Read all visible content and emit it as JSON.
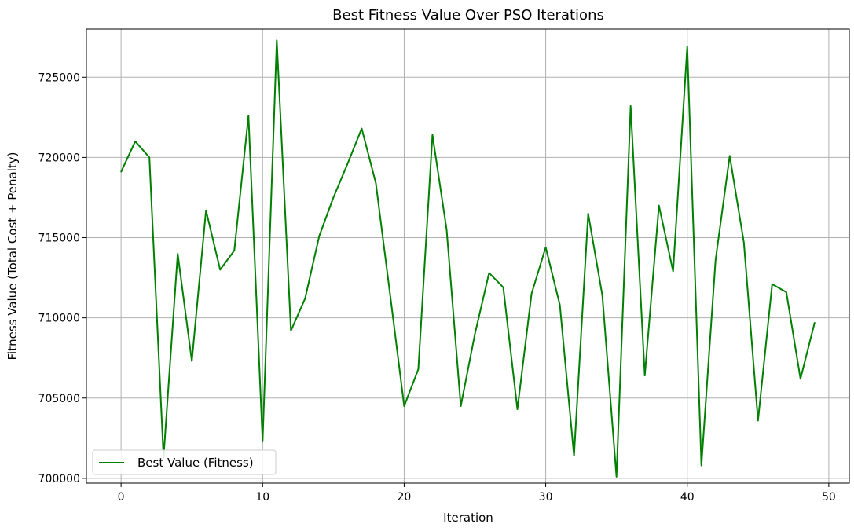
{
  "chart_data": {
    "type": "line",
    "title": "Best Fitness Value Over PSO Iterations",
    "xlabel": "Iteration",
    "ylabel": "Fitness Value (Total Cost + Penalty)",
    "xlim": [
      -2.45,
      51.45
    ],
    "ylim": [
      699700,
      728000
    ],
    "xticks": [
      0,
      10,
      20,
      30,
      40,
      50
    ],
    "xtick_labels": [
      "0",
      "10",
      "20",
      "30",
      "40",
      "50"
    ],
    "yticks": [
      700000,
      705000,
      710000,
      715000,
      720000,
      725000
    ],
    "ytick_labels": [
      "700000",
      "705000",
      "710000",
      "715000",
      "720000",
      "725000"
    ],
    "grid": true,
    "legend_position": "lower-left",
    "series": [
      {
        "name": "Best Value (Fitness)",
        "color": "#008000",
        "x": [
          0,
          1,
          2,
          3,
          4,
          5,
          6,
          7,
          8,
          9,
          10,
          11,
          12,
          13,
          14,
          15,
          16,
          17,
          18,
          19,
          20,
          21,
          22,
          23,
          24,
          25,
          26,
          27,
          28,
          29,
          30,
          31,
          32,
          33,
          34,
          35,
          36,
          37,
          38,
          39,
          40,
          41,
          42,
          43,
          44,
          45,
          46,
          47,
          48,
          49
        ],
        "values": [
          719100,
          721000,
          720000,
          701300,
          714000,
          707300,
          716700,
          713000,
          714200,
          722600,
          702300,
          727300,
          709200,
          711200,
          715100,
          717500,
          719600,
          721800,
          718400,
          711500,
          704500,
          706800,
          721400,
          715500,
          704500,
          709000,
          712800,
          711900,
          704300,
          711500,
          714400,
          710800,
          701400,
          716500,
          711400,
          700100,
          723200,
          706400,
          717000,
          712900,
          726900,
          700800,
          713600,
          720100,
          714700,
          703600,
          712100,
          711600,
          706200,
          709700
        ]
      }
    ]
  }
}
